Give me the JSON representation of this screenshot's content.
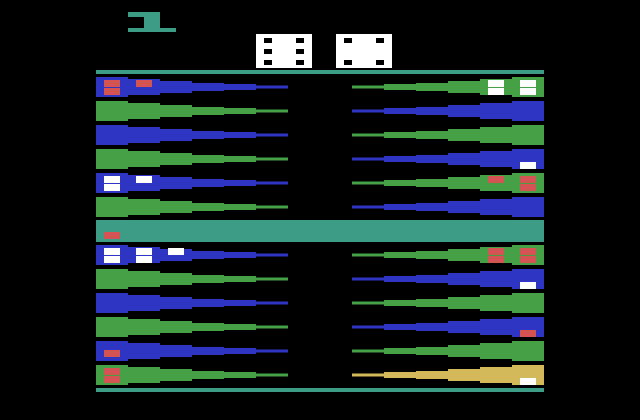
{
  "game": {
    "title": "",
    "player_indicator": "1",
    "colors": {
      "teal": "#3d9c85",
      "blue": "#2e35c2",
      "green": "#46a046",
      "red": "#d45454",
      "white": "#ffffff",
      "gold": "#d4b95a",
      "background": "#000000"
    },
    "dice": [
      {
        "name": "die-left",
        "value": 6
      },
      {
        "name": "die-right",
        "value": 4
      }
    ],
    "bar": {
      "red_checkers": 1,
      "white_checkers": 0
    },
    "board": {
      "top_left": [
        {
          "color": "blue",
          "red": 3,
          "white": 0
        },
        {
          "color": "green",
          "red": 0,
          "white": 0
        },
        {
          "color": "blue",
          "red": 0,
          "white": 0
        },
        {
          "color": "green",
          "red": 0,
          "white": 0
        },
        {
          "color": "blue",
          "red": 0,
          "white": 3
        },
        {
          "color": "green",
          "red": 0,
          "white": 0
        }
      ],
      "top_right": [
        {
          "color": "green",
          "red": 0,
          "white": 4
        },
        {
          "color": "blue",
          "red": 0,
          "white": 0
        },
        {
          "color": "green",
          "red": 0,
          "white": 0
        },
        {
          "color": "blue",
          "red": 0,
          "white": 1
        },
        {
          "color": "green",
          "red": 3,
          "white": 0
        },
        {
          "color": "blue",
          "red": 0,
          "white": 0
        }
      ],
      "bottom_left": [
        {
          "color": "blue",
          "red": 0,
          "white": 5
        },
        {
          "color": "green",
          "red": 0,
          "white": 0
        },
        {
          "color": "blue",
          "red": 0,
          "white": 0
        },
        {
          "color": "green",
          "red": 0,
          "white": 0
        },
        {
          "color": "blue",
          "red": 1,
          "white": 0
        },
        {
          "color": "green",
          "red": 2,
          "white": 0
        }
      ],
      "bottom_right": [
        {
          "color": "green",
          "red": 4,
          "white": 0
        },
        {
          "color": "blue",
          "red": 0,
          "white": 1
        },
        {
          "color": "green",
          "red": 0,
          "white": 0
        },
        {
          "color": "blue",
          "red": 1,
          "white": 0
        },
        {
          "color": "green",
          "red": 0,
          "white": 0
        },
        {
          "color": "gold",
          "red": 0,
          "white": 1
        }
      ]
    }
  }
}
